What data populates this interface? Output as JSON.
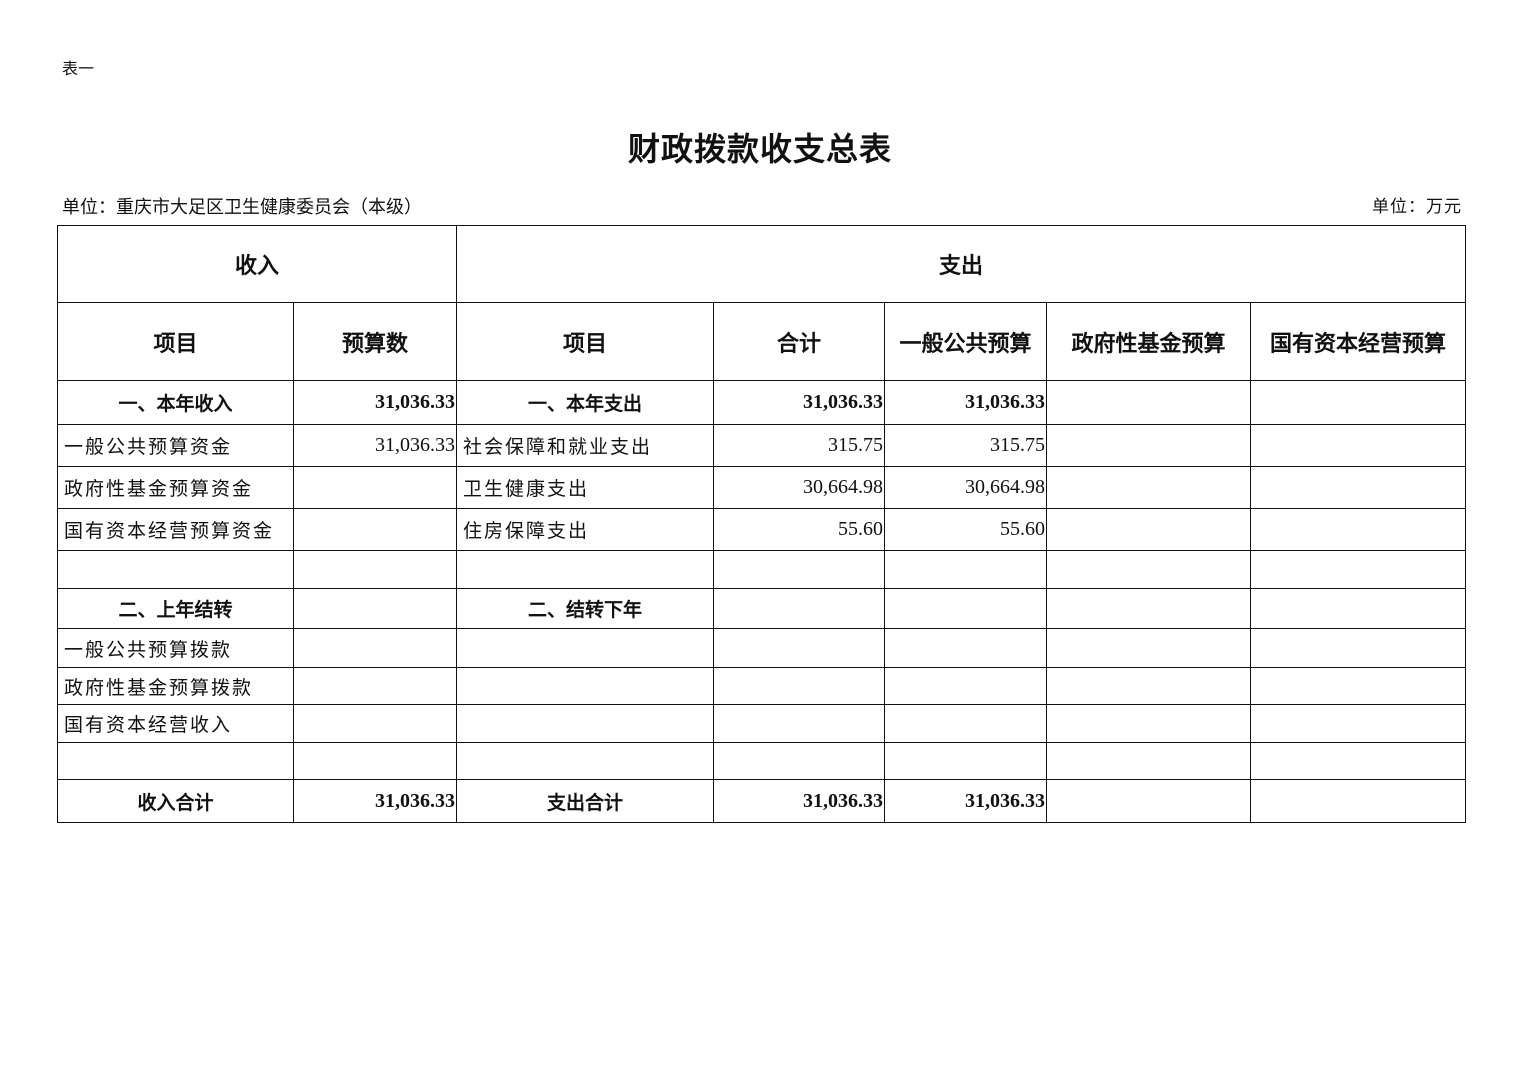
{
  "doc": {
    "tag": "表一",
    "title": "财政拨款收支总表",
    "unit_left": "单位：重庆市大足区卫生健康委员会（本级）",
    "unit_right": "单位：万元"
  },
  "table": {
    "group_headers": [
      "收入",
      "支出"
    ],
    "columns": [
      "项目",
      "预算数",
      "项目",
      "合计",
      "一般公共预算",
      "政府性基金预算",
      "国有资本经营预算"
    ],
    "rows": [
      {
        "bold": true,
        "cells": [
          "一、本年收入",
          "31,036.33",
          "一、本年支出",
          "31,036.33",
          "31,036.33",
          "",
          ""
        ]
      },
      {
        "bold": false,
        "cells": [
          "一般公共预算资金",
          "31,036.33",
          "社会保障和就业支出",
          "315.75",
          "315.75",
          "",
          ""
        ]
      },
      {
        "bold": false,
        "cells": [
          "政府性基金预算资金",
          "",
          "卫生健康支出",
          "30,664.98",
          "30,664.98",
          "",
          ""
        ]
      },
      {
        "bold": false,
        "cells": [
          "国有资本经营预算资金",
          "",
          "住房保障支出",
          "55.60",
          "55.60",
          "",
          ""
        ]
      },
      {
        "bold": false,
        "cells": [
          "",
          "",
          "",
          "",
          "",
          "",
          ""
        ]
      },
      {
        "bold": true,
        "cells": [
          "二、上年结转",
          "",
          "二、结转下年",
          "",
          "",
          "",
          ""
        ]
      },
      {
        "bold": false,
        "cells": [
          "一般公共预算拨款",
          "",
          "",
          "",
          "",
          "",
          ""
        ]
      },
      {
        "bold": false,
        "cells": [
          "政府性基金预算拨款",
          "",
          "",
          "",
          "",
          "",
          ""
        ]
      },
      {
        "bold": false,
        "cells": [
          "国有资本经营收入",
          "",
          "",
          "",
          "",
          "",
          ""
        ]
      },
      {
        "bold": false,
        "cells": [
          "",
          "",
          "",
          "",
          "",
          "",
          ""
        ]
      },
      {
        "bold": true,
        "cells": [
          "收入合计",
          "31,036.33",
          "支出合计",
          "31,036.33",
          "31,036.33",
          "",
          ""
        ]
      }
    ]
  }
}
